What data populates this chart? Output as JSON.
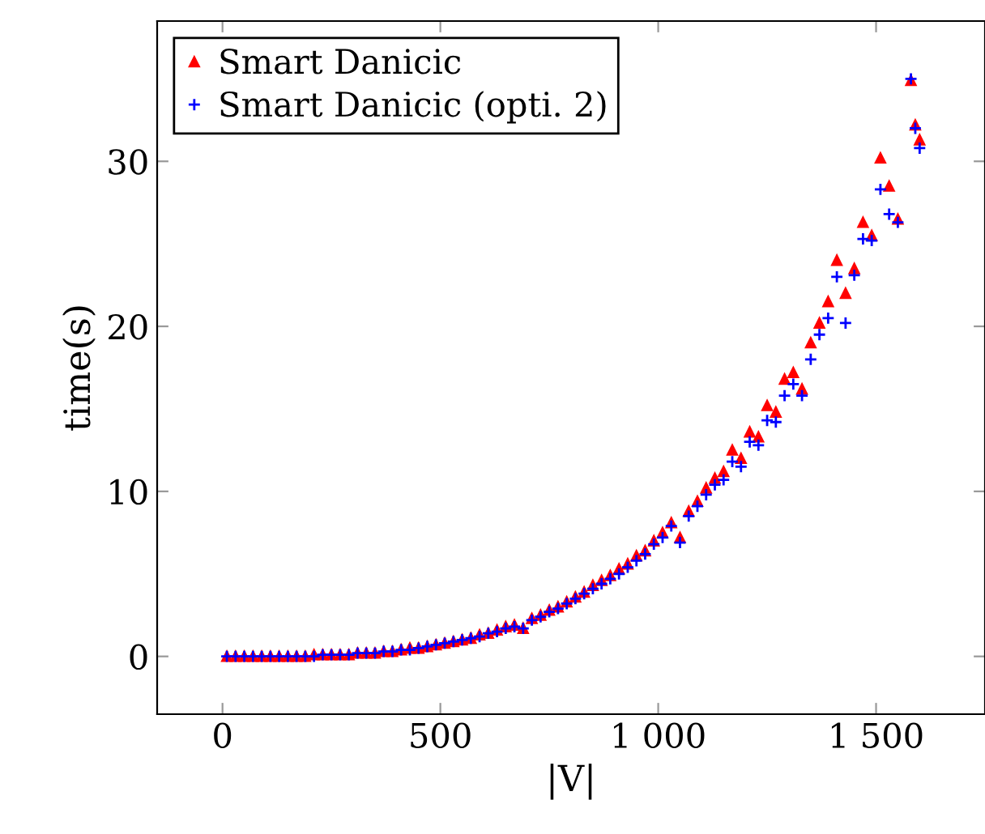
{
  "chart_data": {
    "type": "scatter",
    "xlabel": "|V|",
    "ylabel": "time(s)",
    "xlim": [
      -150,
      1750
    ],
    "ylim": [
      -3.5,
      38.5
    ],
    "xticks": [
      0,
      500,
      {
        "value": 1000,
        "label": "1 000"
      },
      {
        "value": 1500,
        "label": "1 500"
      }
    ],
    "yticks": [
      0,
      10,
      20,
      30
    ],
    "grid": false,
    "legend": "top left",
    "series": [
      {
        "name": "Smart Danicic",
        "color": "#ff0000",
        "marker": "triangle",
        "x": [
          10,
          30,
          50,
          70,
          90,
          110,
          130,
          150,
          170,
          190,
          210,
          230,
          250,
          270,
          290,
          310,
          330,
          350,
          370,
          390,
          410,
          430,
          450,
          470,
          490,
          510,
          530,
          550,
          570,
          590,
          610,
          630,
          650,
          670,
          690,
          710,
          730,
          750,
          770,
          790,
          810,
          830,
          850,
          870,
          890,
          910,
          930,
          950,
          970,
          990,
          1010,
          1030,
          1050,
          1070,
          1090,
          1110,
          1130,
          1150,
          1170,
          1190,
          1210,
          1230,
          1250,
          1270,
          1290,
          1310,
          1330,
          1350,
          1370,
          1390,
          1410,
          1430,
          1450,
          1470,
          1490,
          1510,
          1530,
          1550,
          1580,
          1590,
          1600
        ],
        "values": [
          0,
          0,
          0,
          0,
          0,
          0,
          0,
          0,
          0,
          0,
          0.1,
          0.1,
          0.1,
          0.1,
          0.1,
          0.2,
          0.2,
          0.2,
          0.3,
          0.3,
          0.4,
          0.5,
          0.5,
          0.6,
          0.7,
          0.8,
          0.9,
          1.0,
          1.1,
          1.3,
          1.4,
          1.6,
          1.8,
          1.9,
          1.7,
          2.3,
          2.5,
          2.8,
          3.0,
          3.3,
          3.6,
          3.9,
          4.3,
          4.6,
          4.9,
          5.3,
          5.6,
          6.1,
          6.4,
          7.0,
          7.5,
          8.1,
          7.2,
          8.8,
          9.4,
          10.2,
          10.8,
          11.2,
          12.5,
          12.0,
          13.6,
          13.3,
          15.2,
          14.8,
          16.8,
          17.2,
          16.2,
          19.0,
          20.2,
          21.5,
          24.0,
          22.0,
          23.5,
          26.3,
          25.5,
          30.2,
          28.5,
          26.5,
          34.9,
          32.2,
          31.3
        ]
      },
      {
        "name": "Smart Danicic (opti. 2)",
        "color": "#0000ff",
        "marker": "cross",
        "x": [
          10,
          30,
          50,
          70,
          90,
          110,
          130,
          150,
          170,
          190,
          210,
          230,
          250,
          270,
          290,
          310,
          330,
          350,
          370,
          390,
          410,
          430,
          450,
          470,
          490,
          510,
          530,
          550,
          570,
          590,
          610,
          630,
          650,
          670,
          690,
          710,
          730,
          750,
          770,
          790,
          810,
          830,
          850,
          870,
          890,
          910,
          930,
          950,
          970,
          990,
          1010,
          1030,
          1050,
          1070,
          1090,
          1110,
          1130,
          1150,
          1170,
          1190,
          1210,
          1230,
          1250,
          1270,
          1290,
          1310,
          1330,
          1350,
          1370,
          1390,
          1410,
          1430,
          1450,
          1470,
          1490,
          1510,
          1530,
          1550,
          1580,
          1590,
          1600
        ],
        "values": [
          0,
          0,
          0,
          0,
          0,
          0,
          0,
          0,
          0,
          0,
          0,
          0.1,
          0.1,
          0.1,
          0.1,
          0.2,
          0.2,
          0.2,
          0.3,
          0.3,
          0.4,
          0.4,
          0.5,
          0.6,
          0.7,
          0.8,
          0.9,
          1.0,
          1.1,
          1.2,
          1.4,
          1.5,
          1.7,
          1.8,
          1.7,
          2.2,
          2.4,
          2.7,
          2.9,
          3.2,
          3.5,
          3.8,
          4.1,
          4.4,
          4.7,
          5.0,
          5.4,
          5.8,
          6.2,
          6.8,
          7.2,
          7.9,
          6.9,
          8.5,
          9.1,
          9.8,
          10.4,
          10.7,
          11.8,
          11.5,
          13.0,
          12.8,
          14.3,
          14.2,
          15.8,
          16.5,
          15.8,
          18.0,
          19.5,
          20.5,
          23.0,
          20.2,
          23.1,
          25.3,
          25.2,
          28.3,
          26.8,
          26.3,
          35.0,
          32.0,
          30.8
        ]
      }
    ]
  }
}
